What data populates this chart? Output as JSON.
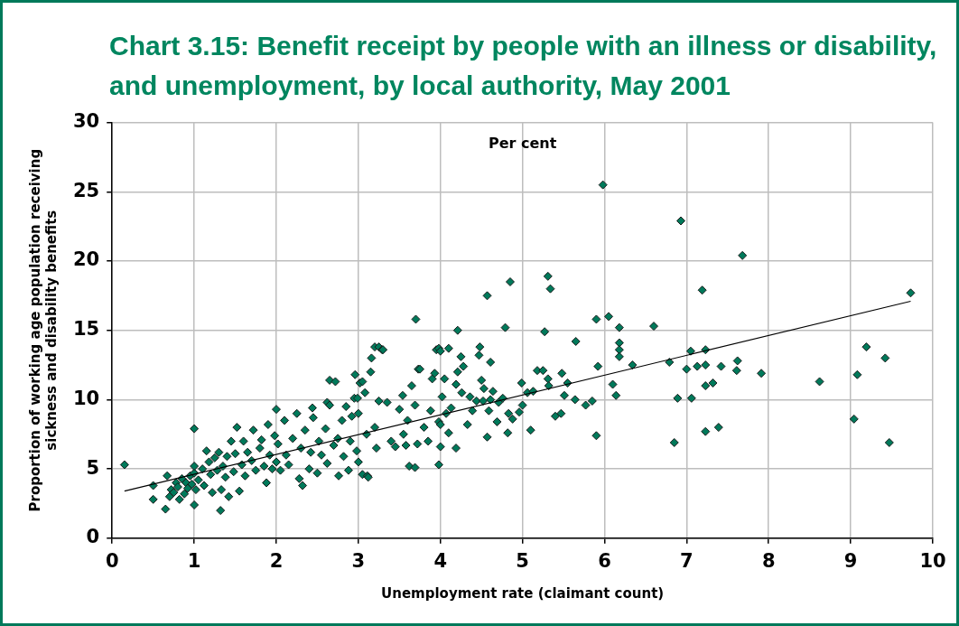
{
  "chart_data": {
    "type": "scatter",
    "title": "Chart 3.15: Benefit receipt by people with an illness or disability, and unemployment, by local authority, May 2001",
    "xlabel": "Unemployment rate (claimant count)",
    "ylabel": "Proportion of working age population receiving\nsickness and disability benefits",
    "annotations": [
      "Per cent"
    ],
    "series": [
      {
        "color": "#00795a",
        "marker": "diamond",
        "x": [
          0.15,
          0.5,
          0.5,
          0.65,
          0.67,
          0.7,
          0.72,
          0.75,
          0.78,
          0.8,
          0.82,
          0.85,
          0.88,
          0.9,
          0.92,
          0.95,
          0.97,
          1.0,
          1.0,
          1.0,
          1.0,
          1.02,
          1.05,
          1.1,
          1.12,
          1.15,
          1.18,
          1.2,
          1.22,
          1.25,
          1.28,
          1.3,
          1.32,
          1.33,
          1.35,
          1.38,
          1.4,
          1.42,
          1.45,
          1.48,
          1.5,
          1.52,
          1.55,
          1.58,
          1.6,
          1.62,
          1.65,
          1.7,
          1.72,
          1.75,
          1.8,
          1.82,
          1.85,
          1.88,
          1.9,
          1.92,
          1.95,
          1.98,
          2.0,
          2.0,
          2.02,
          2.05,
          2.1,
          2.12,
          2.15,
          2.2,
          2.25,
          2.28,
          2.3,
          2.32,
          2.35,
          2.4,
          2.42,
          2.44,
          2.45,
          2.5,
          2.52,
          2.55,
          2.6,
          2.62,
          2.62,
          2.65,
          2.65,
          2.7,
          2.72,
          2.75,
          2.76,
          2.8,
          2.82,
          2.85,
          2.88,
          2.9,
          2.92,
          2.95,
          2.96,
          2.98,
          2.99,
          3.0,
          3.0,
          3.02,
          3.05,
          3.05,
          3.08,
          3.1,
          3.11,
          3.12,
          3.15,
          3.16,
          3.2,
          3.2,
          3.22,
          3.25,
          3.25,
          3.29,
          3.3,
          3.35,
          3.4,
          3.45,
          3.5,
          3.54,
          3.55,
          3.58,
          3.6,
          3.62,
          3.65,
          3.69,
          3.69,
          3.7,
          3.72,
          3.73,
          3.75,
          3.8,
          3.85,
          3.88,
          3.9,
          3.93,
          3.95,
          3.98,
          3.98,
          3.98,
          4.0,
          4.0,
          4.0,
          4.02,
          4.05,
          4.07,
          4.1,
          4.1,
          4.13,
          4.19,
          4.19,
          4.21,
          4.21,
          4.25,
          4.26,
          4.28,
          4.33,
          4.36,
          4.39,
          4.44,
          4.47,
          4.48,
          4.5,
          4.52,
          4.53,
          4.57,
          4.57,
          4.59,
          4.61,
          4.61,
          4.64,
          4.69,
          4.71,
          4.76,
          4.79,
          4.82,
          4.83,
          4.85,
          4.88,
          4.96,
          4.99,
          5.0,
          5.06,
          5.1,
          5.13,
          5.18,
          5.25,
          5.27,
          5.31,
          5.31,
          5.32,
          5.34,
          5.4,
          5.47,
          5.48,
          5.51,
          5.55,
          5.64,
          5.65,
          5.77,
          5.85,
          5.9,
          5.9,
          5.92,
          5.98,
          6.05,
          6.1,
          6.14,
          6.18,
          6.18,
          6.18,
          6.18,
          6.34,
          6.6,
          6.79,
          6.85,
          6.89,
          6.93,
          7.0,
          7.05,
          7.06,
          7.13,
          7.19,
          7.23,
          7.23,
          7.23,
          7.23,
          7.32,
          7.39,
          7.42,
          7.61,
          7.62,
          7.68,
          7.91,
          8.62,
          9.04,
          9.08,
          9.19,
          9.42,
          9.47,
          9.73
        ],
        "values": [
          5.3,
          3.8,
          2.8,
          2.1,
          4.5,
          3.0,
          3.5,
          3.3,
          4.0,
          3.7,
          2.8,
          4.3,
          3.2,
          4.0,
          3.6,
          4.5,
          3.9,
          4.7,
          2.4,
          7.9,
          5.2,
          3.5,
          4.2,
          5.0,
          3.8,
          6.3,
          5.5,
          4.6,
          3.3,
          5.8,
          4.9,
          6.2,
          2.0,
          3.5,
          5.2,
          4.4,
          5.9,
          3.0,
          7.0,
          4.8,
          6.1,
          8.0,
          3.4,
          5.3,
          7.0,
          4.5,
          6.2,
          5.6,
          7.8,
          4.9,
          6.5,
          7.1,
          5.2,
          4.0,
          8.2,
          6.0,
          5.0,
          7.4,
          9.3,
          5.5,
          6.8,
          4.9,
          8.5,
          6.0,
          5.3,
          7.2,
          9.0,
          4.3,
          6.5,
          3.8,
          7.8,
          5.0,
          6.2,
          9.4,
          8.7,
          4.7,
          7.0,
          6.0,
          7.9,
          5.4,
          9.8,
          9.6,
          11.4,
          6.7,
          11.3,
          7.2,
          4.5,
          8.5,
          5.9,
          9.5,
          4.9,
          7.0,
          8.8,
          10.1,
          11.8,
          6.3,
          10.1,
          9.0,
          5.5,
          11.2,
          4.6,
          11.3,
          10.5,
          7.5,
          4.5,
          4.4,
          12.0,
          13.0,
          8.0,
          13.8,
          6.5,
          13.8,
          9.9,
          13.6,
          13.6,
          9.8,
          7.0,
          6.6,
          9.3,
          10.3,
          7.5,
          6.7,
          8.5,
          5.2,
          11.0,
          9.6,
          5.1,
          15.8,
          6.8,
          12.2,
          12.2,
          8.0,
          7.0,
          9.2,
          11.5,
          11.9,
          13.6,
          13.7,
          8.4,
          5.3,
          13.5,
          8.2,
          6.6,
          10.2,
          11.5,
          9.0,
          13.7,
          7.6,
          9.4,
          11.1,
          6.5,
          15.0,
          12.0,
          13.1,
          10.5,
          12.4,
          8.2,
          10.2,
          9.2,
          9.9,
          13.2,
          13.8,
          11.4,
          9.9,
          10.8,
          17.5,
          7.3,
          9.2,
          10.0,
          12.7,
          10.6,
          8.4,
          9.8,
          10.1,
          15.2,
          7.6,
          9.0,
          18.5,
          8.6,
          9.1,
          11.2,
          9.6,
          10.5,
          7.8,
          10.6,
          12.1,
          12.1,
          14.9,
          18.9,
          11.5,
          11.0,
          18.0,
          8.8,
          9.0,
          11.9,
          10.3,
          11.2,
          10.0,
          14.2,
          9.6,
          9.9,
          15.8,
          7.4,
          12.4,
          25.5,
          16.0,
          11.1,
          10.3,
          15.2,
          14.1,
          13.6,
          13.1,
          12.5,
          15.3,
          12.7,
          6.9,
          10.1,
          22.9,
          12.2,
          13.5,
          10.1,
          12.4,
          17.9,
          13.6,
          12.5,
          11.0,
          7.7,
          11.2,
          8.0,
          12.4,
          12.1,
          12.8,
          20.4,
          11.9,
          11.3,
          8.6,
          11.8,
          13.8,
          13.0,
          6.9,
          17.7
        ]
      },
      {
        "type": "line",
        "color": "#000000",
        "marker": "none",
        "x": [
          0.15,
          9.73
        ],
        "values": [
          3.4,
          17.1
        ]
      }
    ],
    "xlim": [
      0,
      10
    ],
    "xticks": [
      0,
      1,
      2,
      3,
      4,
      5,
      6,
      7,
      8,
      9,
      10
    ],
    "ylim": [
      0,
      30
    ],
    "yticks": [
      0,
      5,
      10,
      15,
      20,
      25,
      30
    ],
    "grid": true,
    "legend": false
  }
}
